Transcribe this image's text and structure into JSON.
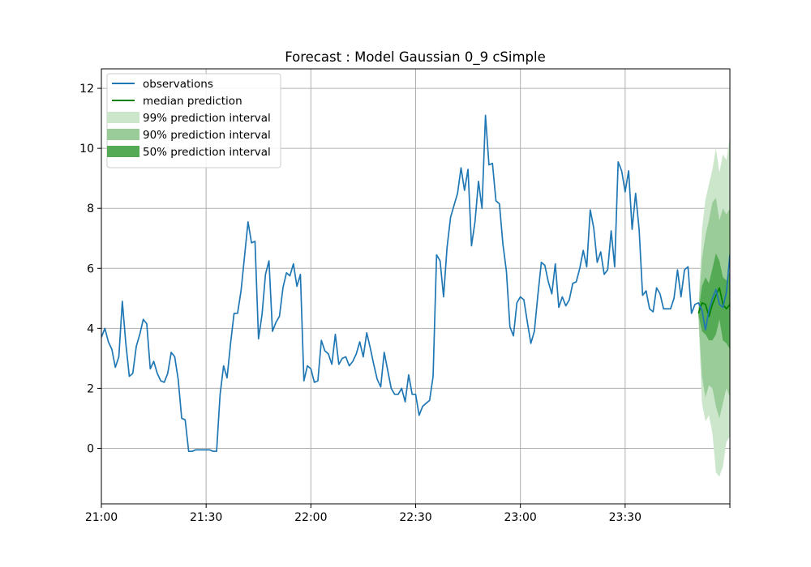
{
  "chart_data": {
    "type": "line",
    "title": "Forecast : Model Gaussian 0_9 cSimple",
    "xlabel": "",
    "ylabel": "",
    "x_unit": "minutes after 21:00",
    "xlim": [
      0,
      180
    ],
    "ylim": [
      -1.85,
      12.65
    ],
    "grid": true,
    "legend_position": "top-left",
    "x_ticks": [
      {
        "value": 0,
        "label": "21:00"
      },
      {
        "value": 30,
        "label": "21:30"
      },
      {
        "value": 60,
        "label": "22:00"
      },
      {
        "value": 90,
        "label": "22:30"
      },
      {
        "value": 120,
        "label": "23:00"
      },
      {
        "value": 150,
        "label": "23:30"
      },
      {
        "value": 180,
        "label": ""
      }
    ],
    "y_ticks": [
      {
        "value": 0,
        "label": "0"
      },
      {
        "value": 2,
        "label": "2"
      },
      {
        "value": 4,
        "label": "4"
      },
      {
        "value": 6,
        "label": "6"
      },
      {
        "value": 8,
        "label": "8"
      },
      {
        "value": 10,
        "label": "10"
      },
      {
        "value": 12,
        "label": "12"
      }
    ],
    "legend": [
      {
        "label": "observations",
        "kind": "line",
        "color": "#1f77b4"
      },
      {
        "label": "median prediction",
        "kind": "line",
        "color": "#008000"
      },
      {
        "label": "99% prediction interval",
        "kind": "patch",
        "color": "#cce6cc"
      },
      {
        "label": "90% prediction interval",
        "kind": "patch",
        "color": "#99cc99"
      },
      {
        "label": "50% prediction interval",
        "kind": "patch",
        "color": "#55aa55"
      }
    ],
    "series": [
      {
        "name": "observations",
        "color": "#1f77b4",
        "start_minute": 0,
        "step_minutes": 1,
        "values": [
          3.7,
          4.0,
          3.55,
          3.3,
          2.7,
          3.05,
          4.9,
          3.5,
          2.4,
          2.5,
          3.4,
          3.8,
          4.3,
          4.15,
          2.65,
          2.9,
          2.5,
          2.25,
          2.2,
          2.5,
          3.2,
          3.05,
          2.3,
          1.0,
          0.95,
          -0.1,
          -0.1,
          -0.05,
          -0.05,
          -0.05,
          -0.05,
          -0.05,
          -0.1,
          -0.1,
          1.8,
          2.75,
          2.35,
          3.5,
          4.5,
          4.5,
          5.25,
          6.4,
          7.55,
          6.85,
          6.9,
          3.65,
          4.45,
          5.8,
          6.25,
          3.9,
          4.2,
          4.4,
          5.35,
          5.85,
          5.75,
          6.15,
          5.4,
          5.8,
          2.25,
          2.75,
          2.65,
          2.2,
          2.25,
          3.6,
          3.25,
          3.15,
          2.8,
          3.8,
          2.8,
          3.0,
          3.05,
          2.75,
          2.9,
          3.15,
          3.55,
          3.05,
          3.85,
          3.35,
          2.8,
          2.3,
          2.05,
          3.2,
          2.6,
          2.0,
          1.8,
          1.8,
          2.0,
          1.55,
          2.45,
          1.8,
          1.8,
          1.1,
          1.4,
          1.5,
          1.6,
          2.4,
          6.45,
          6.25,
          5.05,
          6.7,
          7.7,
          8.1,
          8.5,
          9.35,
          8.6,
          9.3,
          6.75,
          7.55,
          8.9,
          8.0,
          11.1,
          9.45,
          9.5,
          8.25,
          8.15,
          6.8,
          5.9,
          4.05,
          3.75,
          4.85,
          5.05,
          4.95,
          4.2,
          3.5,
          3.9,
          5.1,
          6.2,
          6.1,
          5.55,
          5.15,
          6.15,
          4.7,
          5.05,
          4.75,
          4.95,
          5.5,
          5.55,
          6.0,
          6.6,
          6.05,
          7.95,
          7.35,
          6.2,
          6.55,
          5.8,
          5.95,
          7.25,
          6.05,
          9.55,
          9.25,
          8.55,
          9.25,
          7.3,
          8.5,
          7.3,
          5.1,
          5.25,
          4.65,
          4.55,
          5.35,
          5.15,
          4.65,
          4.65,
          4.65,
          5.0,
          5.95,
          5.05,
          5.95,
          6.05,
          4.5,
          4.8,
          4.85,
          4.6,
          3.95,
          4.6,
          5.0,
          5.3,
          4.8,
          4.7,
          5.2,
          6.45,
          6.0
        ]
      },
      {
        "name": "median prediction",
        "color": "#008000",
        "start_minute": 171,
        "step_minutes": 1,
        "values": [
          4.5,
          4.85,
          4.8,
          4.4,
          4.8,
          5.1,
          5.35,
          4.8,
          4.65,
          4.8,
          4.85
        ]
      },
      {
        "name": "99% prediction interval",
        "color": "#cce6cc",
        "start_minute": 171,
        "step_minutes": 1,
        "upper": [
          4.7,
          7.3,
          8.3,
          8.8,
          9.3,
          10.0,
          9.2,
          9.8,
          9.6,
          10.4,
          11.45
        ],
        "lower": [
          4.3,
          1.5,
          0.9,
          1.1,
          0.5,
          -0.8,
          -0.95,
          -0.6,
          0.2,
          0.4,
          0.6
        ]
      },
      {
        "name": "90% prediction interval",
        "color": "#99cc99",
        "start_minute": 171,
        "step_minutes": 1,
        "upper": [
          4.6,
          6.3,
          7.1,
          7.6,
          8.2,
          8.35,
          7.6,
          8.0,
          7.8,
          8.0,
          8.0
        ],
        "lower": [
          4.4,
          2.4,
          1.7,
          2.1,
          2.0,
          1.4,
          1.0,
          1.5,
          2.0,
          1.7,
          1.8
        ]
      },
      {
        "name": "50% prediction interval",
        "color": "#55aa55",
        "start_minute": 171,
        "step_minutes": 1,
        "upper": [
          4.55,
          5.4,
          5.7,
          5.5,
          6.0,
          6.5,
          6.25,
          5.7,
          5.6,
          5.9,
          6.0
        ],
        "lower": [
          4.45,
          3.9,
          3.8,
          3.6,
          3.6,
          3.8,
          4.3,
          3.6,
          3.5,
          3.3,
          3.2
        ]
      }
    ]
  }
}
